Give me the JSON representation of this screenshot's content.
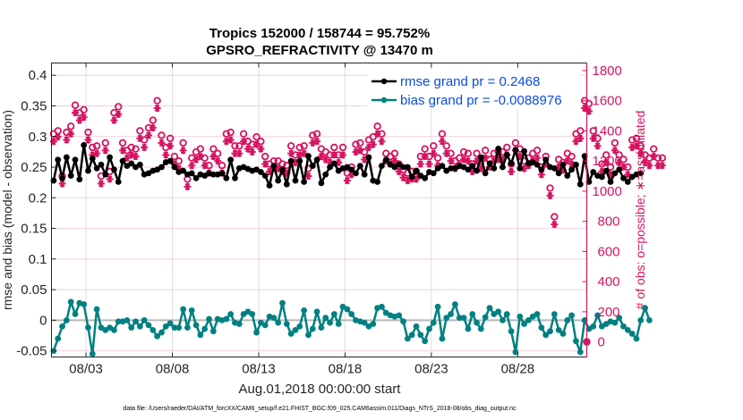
{
  "chart_data": {
    "type": "line",
    "title": "Tropics 152000 / 158744 = 95.752%",
    "subtitle": "GPSRO_REFRACTIVITY @ 13470 m",
    "xlabel": "Aug.01,2018 00:00:00 start",
    "ylabel": "rmse and bias (model - observation)",
    "ylabel_right": "# of obs: o=possible; ∗=assimilated",
    "footnote": "data file: /Users/raeder/DAI/ATM_forcXX/CAM6_setup/f.e21.FHIST_BGC.f09_025.CAM6assim.011/Diags_NTrS_2018-08/obs_diag_output.nc",
    "x_unit": "days since Aug 01 2018 00:00",
    "xlim": [
      0,
      31
    ],
    "x_ticks": [
      {
        "value": 2,
        "label": "08/03"
      },
      {
        "value": 7,
        "label": "08/08"
      },
      {
        "value": 12,
        "label": "08/13"
      },
      {
        "value": 17,
        "label": "08/18"
      },
      {
        "value": 22,
        "label": "08/23"
      },
      {
        "value": 27,
        "label": "08/28"
      }
    ],
    "ylim": [
      -0.06,
      0.42
    ],
    "y_ticks": [
      -0.05,
      0,
      0.05,
      0.1,
      0.15,
      0.2,
      0.25,
      0.3,
      0.35,
      0.4
    ],
    "y_tick_labels": [
      "-0.05",
      "0",
      "0.05",
      "0.1",
      "0.15",
      "0.2",
      "0.25",
      "0.3",
      "0.35",
      "0.4"
    ],
    "ylim_right": [
      -100,
      1850
    ],
    "y_ticks_right": [
      0,
      200,
      400,
      600,
      800,
      1000,
      1200,
      1400,
      1600,
      1800
    ],
    "grid": true,
    "legend_position": "top-right",
    "legend": [
      {
        "label": "rmse grand pr = 0.2468",
        "color": "#000000"
      },
      {
        "label": "bias grand pr = -0.0088976",
        "color": "#008080"
      }
    ],
    "x_step_days": 0.25,
    "series": [
      {
        "name": "rmse",
        "color": "#000000",
        "axis": "left",
        "values": [
          0.228,
          0.262,
          0.232,
          0.266,
          0.236,
          0.262,
          0.23,
          0.286,
          0.244,
          0.264,
          0.248,
          0.254,
          0.238,
          0.266,
          0.246,
          0.226,
          0.26,
          0.252,
          0.256,
          0.25,
          0.254,
          0.238,
          0.24,
          0.244,
          0.246,
          0.25,
          0.258,
          0.26,
          0.25,
          0.242,
          0.244,
          0.238,
          0.24,
          0.232,
          0.238,
          0.236,
          0.24,
          0.238,
          0.238,
          0.24,
          0.232,
          0.262,
          0.232,
          0.248,
          0.25,
          0.247,
          0.244,
          0.246,
          0.242,
          0.236,
          0.22,
          0.252,
          0.228,
          0.246,
          0.222,
          0.26,
          0.228,
          0.26,
          0.226,
          0.268,
          0.252,
          0.262,
          0.224,
          0.238,
          0.25,
          0.256,
          0.244,
          0.248,
          0.25,
          0.246,
          0.24,
          0.252,
          0.238,
          0.266,
          0.228,
          0.226,
          0.252,
          0.262,
          0.254,
          0.25,
          0.254,
          0.25,
          0.25,
          0.234,
          0.244,
          0.236,
          0.232,
          0.242,
          0.24,
          0.248,
          0.252,
          0.244,
          0.248,
          0.248,
          0.252,
          0.25,
          0.246,
          0.252,
          0.244,
          0.266,
          0.24,
          0.256,
          0.248,
          0.28,
          0.25,
          0.27,
          0.256,
          0.278,
          0.248,
          0.276,
          0.256,
          0.258,
          0.254,
          0.246,
          0.262,
          0.25,
          0.248,
          0.24,
          0.254,
          0.236,
          0.246,
          0.254,
          0.222,
          0.268,
          0.226,
          0.242,
          0.236,
          0.234,
          0.244,
          0.226,
          0.24,
          0.246,
          0.232,
          0.226,
          0.234,
          0.238,
          0.24
        ]
      },
      {
        "name": "bias",
        "color": "#008080",
        "axis": "left",
        "values": [
          -0.05,
          -0.03,
          -0.01,
          0.0,
          0.03,
          0.01,
          0.028,
          0.026,
          -0.012,
          -0.055,
          0.018,
          -0.012,
          -0.016,
          -0.012,
          -0.016,
          -0.002,
          -0.002,
          0.0,
          -0.012,
          -0.002,
          -0.01,
          0.0,
          -0.008,
          -0.016,
          -0.026,
          -0.02,
          -0.01,
          -0.005,
          -0.012,
          -0.012,
          0.018,
          -0.012,
          0.016,
          -0.008,
          -0.024,
          -0.014,
          0.002,
          -0.018,
          0.002,
          0.0,
          0.002,
          0.01,
          -0.004,
          -0.006,
          0.01,
          0.014,
          0.01,
          -0.02,
          -0.004,
          -0.008,
          0.006,
          0.004,
          -0.004,
          0.028,
          -0.006,
          -0.022,
          -0.016,
          -0.01,
          0.016,
          -0.024,
          -0.014,
          0.014,
          -0.012,
          0.004,
          -0.004,
          0.01,
          -0.006,
          0.022,
          0.018,
          0.01,
          0.0,
          -0.002,
          -0.004,
          -0.01,
          -0.006,
          0.02,
          0.022,
          0.012,
          0.008,
          0.006,
          0.008,
          -0.002,
          -0.03,
          -0.024,
          -0.01,
          -0.024,
          -0.034,
          -0.014,
          -0.004,
          0.022,
          -0.03,
          0.004,
          0.01,
          0.026,
          0.004,
          0.004,
          -0.014,
          0.01,
          -0.004,
          -0.014,
          0.005,
          0.02,
          0.01,
          0.014,
          0.0,
          0.01,
          -0.018,
          -0.052,
          0.006,
          -0.006,
          0.0,
          0.006,
          0.01,
          -0.012,
          -0.024,
          -0.018,
          0.01,
          -0.016,
          -0.022,
          0.0,
          0.008,
          -0.034,
          -0.052,
          0.0,
          -0.014,
          -0.01,
          0.008,
          -0.01,
          -0.006,
          -0.002,
          -0.004,
          0.004,
          -0.01,
          -0.016,
          -0.022,
          -0.03,
          0.0,
          0.02,
          0.0
        ]
      },
      {
        "name": "obs possible",
        "color": "#d6145f",
        "axis": "right",
        "marker": "circle",
        "values": [
          1380,
          1400,
          1100,
          1390,
          1430,
          1570,
          1520,
          1540,
          1390,
          1290,
          1300,
          1100,
          1320,
          1130,
          1520,
          1560,
          1320,
          1270,
          1290,
          1280,
          1400,
          1340,
          1420,
          1470,
          1600,
          1370,
          1290,
          1350,
          1230,
          1200,
          1320,
          1080,
          1220,
          1260,
          1280,
          1220,
          1170,
          1280,
          1250,
          1170,
          1380,
          1390,
          1300,
          1300,
          1380,
          1330,
          1310,
          1360,
          1330,
          1230,
          1180,
          1200,
          1200,
          1180,
          1170,
          1300,
          1240,
          1290,
          1300,
          1150,
          1370,
          1380,
          1280,
          1260,
          1240,
          1290,
          1240,
          1290,
          1120,
          1160,
          1310,
          1320,
          1260,
          1340,
          1360,
          1430,
          1380,
          1250,
          1230,
          1250,
          1180,
          1140,
          1120,
          1130,
          1130,
          1230,
          1280,
          1230,
          1300,
          1220,
          1380,
          1300,
          1250,
          1200,
          1220,
          1260,
          1250,
          1180,
          1250,
          1200,
          1270,
          1210,
          1250,
          1260,
          1260,
          1290,
          1180,
          1320,
          1280,
          1200,
          1220,
          1250,
          1270,
          1160,
          1230,
          1020,
          830,
          1210,
          1190,
          1250,
          1230,
          1380,
          1400,
          1600,
          1580,
          1400,
          1350,
          1180,
          1240,
          1160,
          1320,
          1240,
          1210,
          1160,
          1340,
          1350,
          1300,
          1240,
          1220,
          1280,
          1220,
          1220,
          0
        ],
        "values_note": "point count approximate; values estimated from pixels"
      },
      {
        "name": "obs assimilated",
        "color": "#d6145f",
        "axis": "right",
        "marker": "asterisk",
        "values": [
          1330,
          1360,
          1050,
          1340,
          1380,
          1520,
          1470,
          1490,
          1340,
          1240,
          1250,
          1050,
          1270,
          1080,
          1470,
          1510,
          1270,
          1220,
          1240,
          1230,
          1350,
          1290,
          1370,
          1420,
          1550,
          1320,
          1240,
          1300,
          1180,
          1150,
          1270,
          1030,
          1170,
          1210,
          1230,
          1170,
          1120,
          1230,
          1200,
          1120,
          1330,
          1340,
          1250,
          1250,
          1330,
          1280,
          1260,
          1310,
          1280,
          1180,
          1130,
          1150,
          1150,
          1130,
          1120,
          1250,
          1190,
          1240,
          1250,
          1100,
          1320,
          1330,
          1230,
          1210,
          1190,
          1240,
          1190,
          1240,
          1070,
          1110,
          1260,
          1270,
          1210,
          1290,
          1310,
          1380,
          1330,
          1200,
          1180,
          1200,
          1130,
          1090,
          1070,
          1080,
          1080,
          1180,
          1230,
          1180,
          1250,
          1170,
          1330,
          1250,
          1200,
          1150,
          1170,
          1210,
          1200,
          1130,
          1200,
          1150,
          1220,
          1160,
          1200,
          1210,
          1210,
          1240,
          1130,
          1270,
          1230,
          1150,
          1170,
          1200,
          1220,
          1110,
          1180,
          970,
          780,
          1160,
          1140,
          1200,
          1180,
          1330,
          1350,
          1550,
          1530,
          1350,
          1300,
          1130,
          1190,
          1110,
          1270,
          1190,
          1160,
          1110,
          1290,
          1300,
          1250,
          1190,
          1170,
          1230,
          1170,
          1170,
          0
        ]
      }
    ]
  }
}
